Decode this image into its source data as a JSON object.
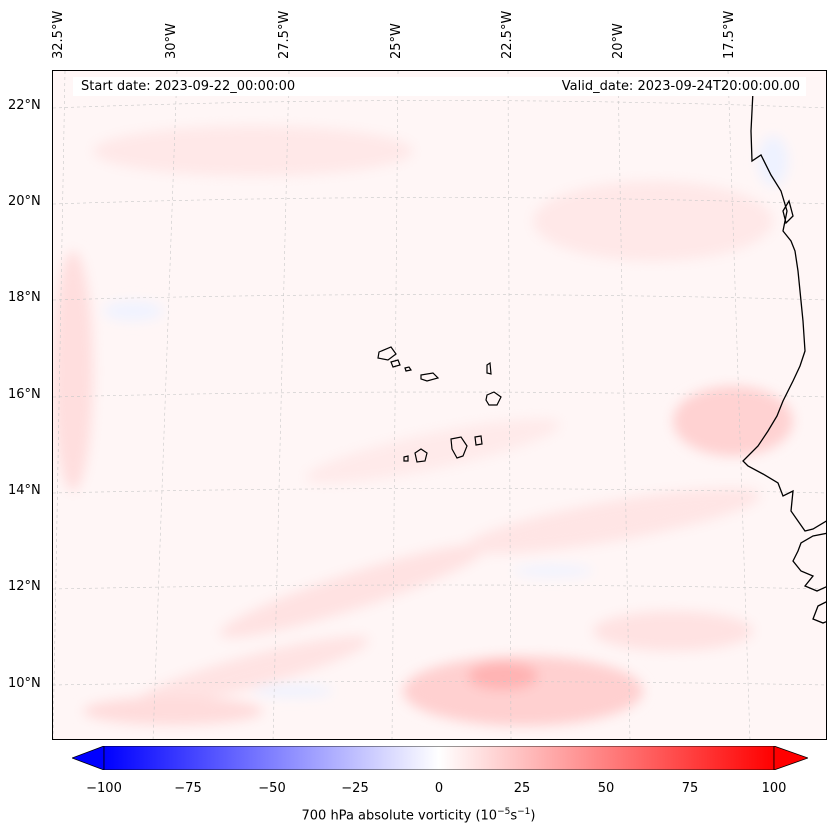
{
  "longitude_labels": [
    "32.5°W",
    "30°W",
    "27.5°W",
    "25°W",
    "22.5°W",
    "20°W",
    "17.5°W"
  ],
  "latitude_labels": [
    "22°N",
    "20°N",
    "18°N",
    "16°N",
    "14°N",
    "12°N",
    "10°N"
  ],
  "start_date": "Start date: 2023-09-22_00:00:00",
  "valid_date": "Valid_date: 2023-09-24T20:00:00.00",
  "colorbar": {
    "ticks": [
      "−100",
      "−75",
      "−50",
      "−25",
      "0",
      "25",
      "50",
      "75",
      "100"
    ],
    "label": "700 hPa absolute vorticity (10",
    "label_exp1": "−5",
    "label_mid": "s",
    "label_exp2": "−1",
    "label_end": ")",
    "min": -100,
    "max": 100,
    "low_color": "#0000ff",
    "mid_color": "#ffffff",
    "high_color": "#ff0000"
  },
  "colors": {
    "background": "#fff6f6",
    "positive_light": "#ffe3e3",
    "positive_mid": "#ffc9c9",
    "negative_light": "#eef2ff",
    "coast": "#000000"
  }
}
